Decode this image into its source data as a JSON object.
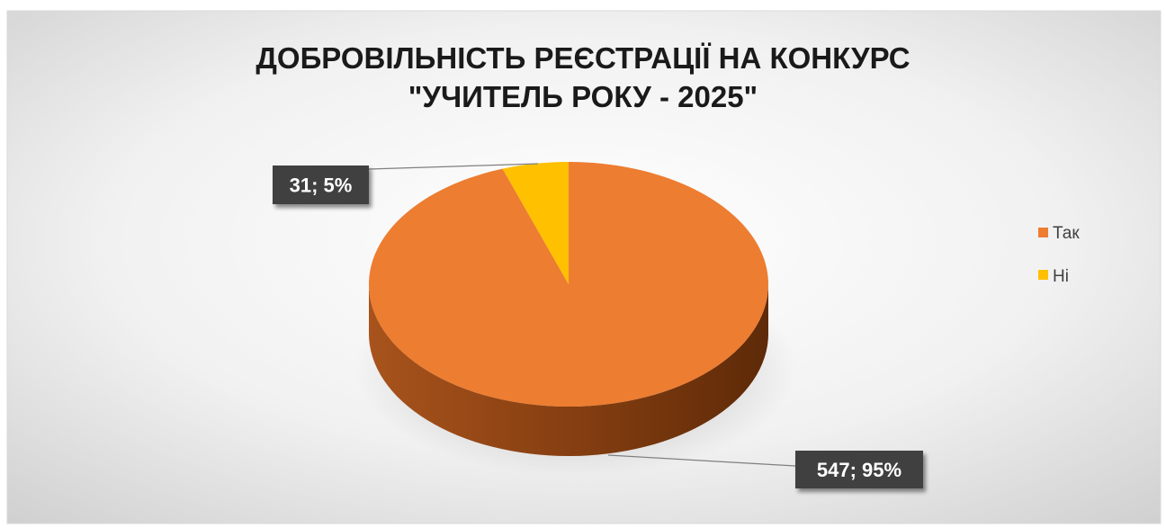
{
  "chart_data": {
    "type": "pie",
    "title": [
      "ДОБРОВІЛЬНІСТЬ РЕЄСТРАЦІЇ НА КОНКУРС",
      "\"УЧИТЕЛЬ РОКУ - 2025\""
    ],
    "categories": [
      "Так",
      "Ні"
    ],
    "values": [
      547,
      31
    ],
    "percentages": [
      95,
      5
    ],
    "data_labels": [
      "547; 95%",
      "31; 5%"
    ],
    "colors": [
      "#ED7D31",
      "#FFC000"
    ],
    "legend_position": "right",
    "style": "3d"
  }
}
